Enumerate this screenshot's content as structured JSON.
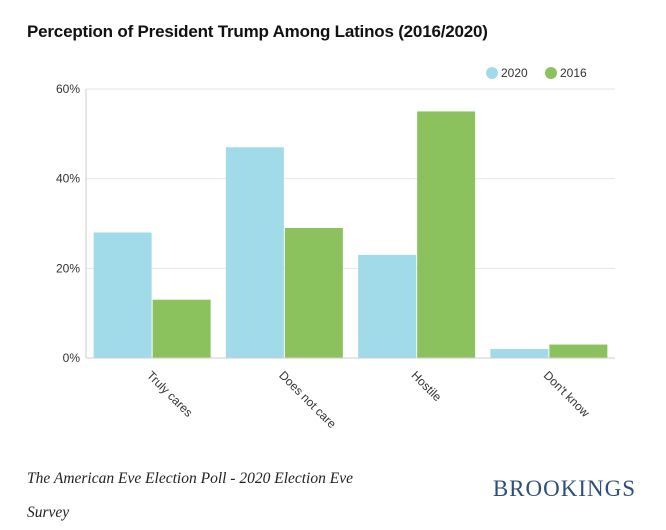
{
  "chart_data": {
    "type": "bar",
    "title": "Perception of President Trump Among Latinos (2016/2020)",
    "categories": [
      "Truly cares",
      "Does not care",
      "Hostile",
      "Don't know"
    ],
    "series": [
      {
        "name": "2020",
        "values": [
          28,
          47,
          23,
          2
        ],
        "color": "#a1dbea"
      },
      {
        "name": "2016",
        "values": [
          13,
          29,
          55,
          3
        ],
        "color": "#8cc25e"
      }
    ],
    "ylim": [
      0,
      60
    ],
    "yticks": [
      0,
      20,
      40,
      60
    ],
    "ytick_labels": [
      "0%",
      "20%",
      "40%",
      "60%"
    ],
    "grid": true,
    "legend": "top-right"
  },
  "source": "The American Eve Election Poll - 2020 Election Eve Survey",
  "brand": "BROOKINGS"
}
